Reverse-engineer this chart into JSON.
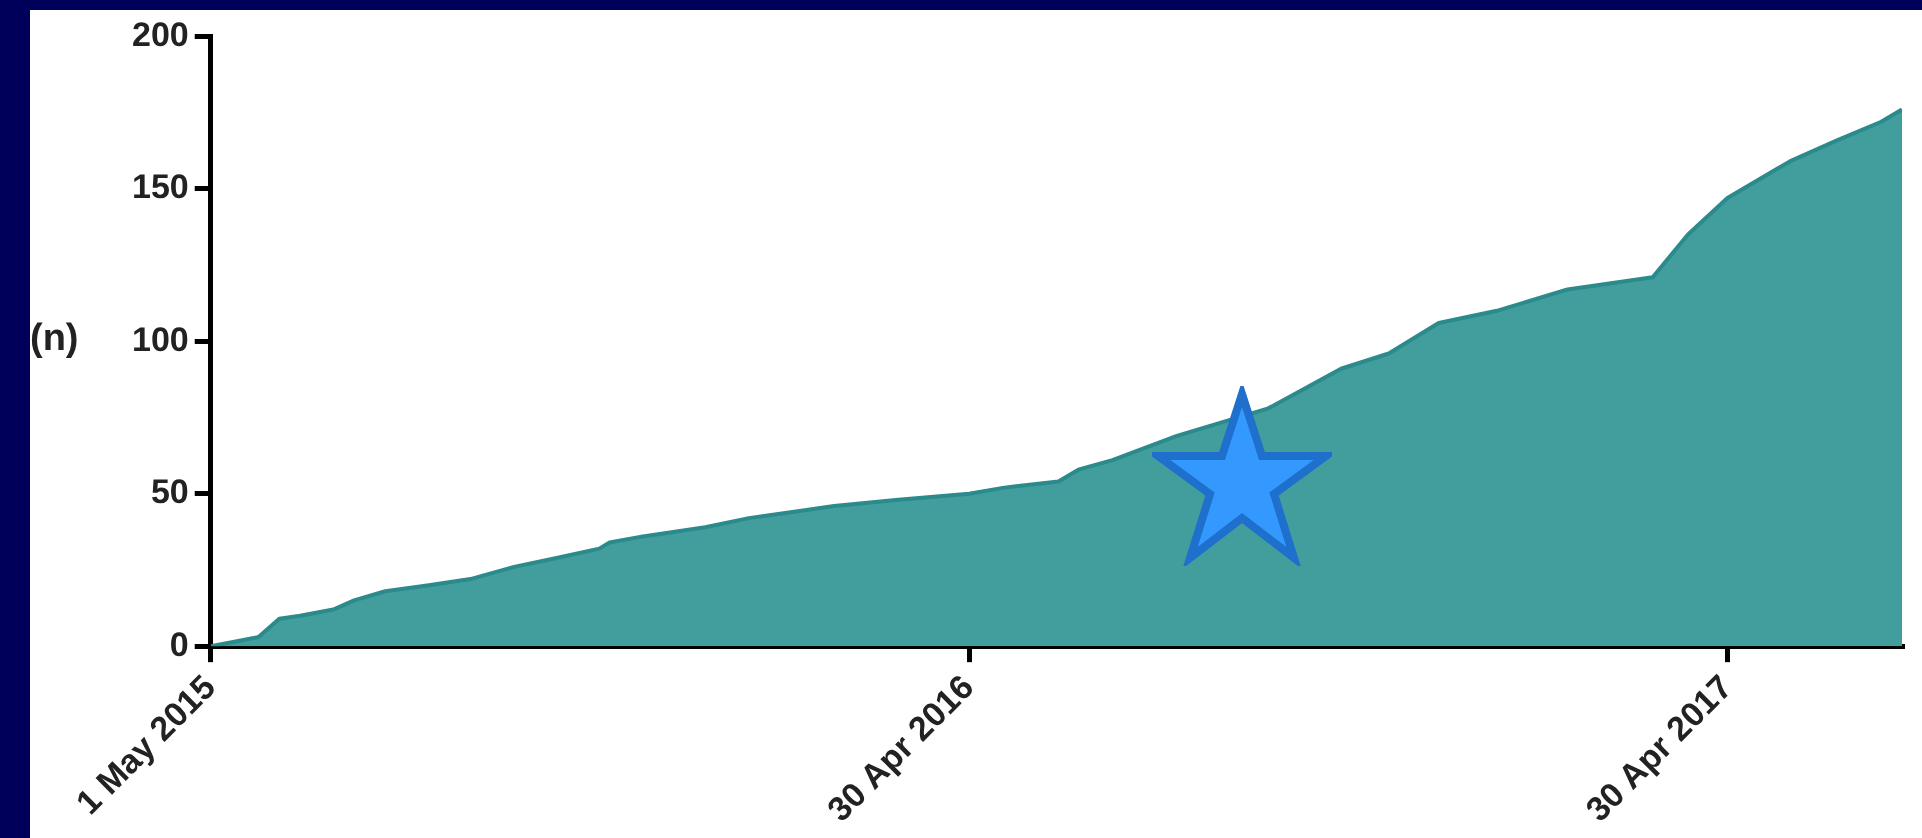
{
  "chart_data": {
    "type": "area",
    "ylabel": "(n)",
    "x": [
      "2015-05-01",
      "2015-05-13",
      "2015-05-24",
      "2015-06-03",
      "2015-06-13",
      "2015-06-29",
      "2015-07-09",
      "2015-07-24",
      "2015-08-14",
      "2015-09-03",
      "2015-09-24",
      "2015-10-15",
      "2015-11-04",
      "2015-11-09",
      "2015-11-25",
      "2015-12-25",
      "2016-01-15",
      "2016-02-05",
      "2016-02-25",
      "2016-03-27",
      "2016-04-30",
      "2016-05-17",
      "2016-06-12",
      "2016-06-22",
      "2016-07-08",
      "2016-08-08",
      "2016-09-21",
      "2016-10-26",
      "2016-11-18",
      "2016-12-12",
      "2017-01-09",
      "2017-02-12",
      "2017-03-25",
      "2017-04-11",
      "2017-04-30",
      "2017-05-30",
      "2017-06-22",
      "2017-07-13",
      "2017-07-23"
    ],
    "series": [
      {
        "color": "#429e9c",
        "values": [
          0,
          1.5,
          3,
          9,
          10,
          12,
          15,
          18,
          20,
          22,
          26,
          29,
          32,
          34,
          36,
          39,
          42,
          44,
          46,
          48,
          50,
          52,
          54,
          58,
          61,
          69,
          78,
          91,
          96,
          106,
          110,
          117,
          121,
          135,
          147,
          159,
          166,
          172,
          176
        ]
      }
    ],
    "xlim": [
      "2015-05-01",
      "2017-07-23"
    ],
    "xticks": [
      {
        "value": "2015-05-01",
        "label": "1 May 2015"
      },
      {
        "value": "2016-04-30",
        "label": "30 Apr 2016"
      },
      {
        "value": "2017-04-30",
        "label": "30 Apr 2017"
      }
    ],
    "ylim": [
      0,
      200
    ],
    "yticks": [
      0,
      50,
      100,
      150,
      200
    ]
  }
}
